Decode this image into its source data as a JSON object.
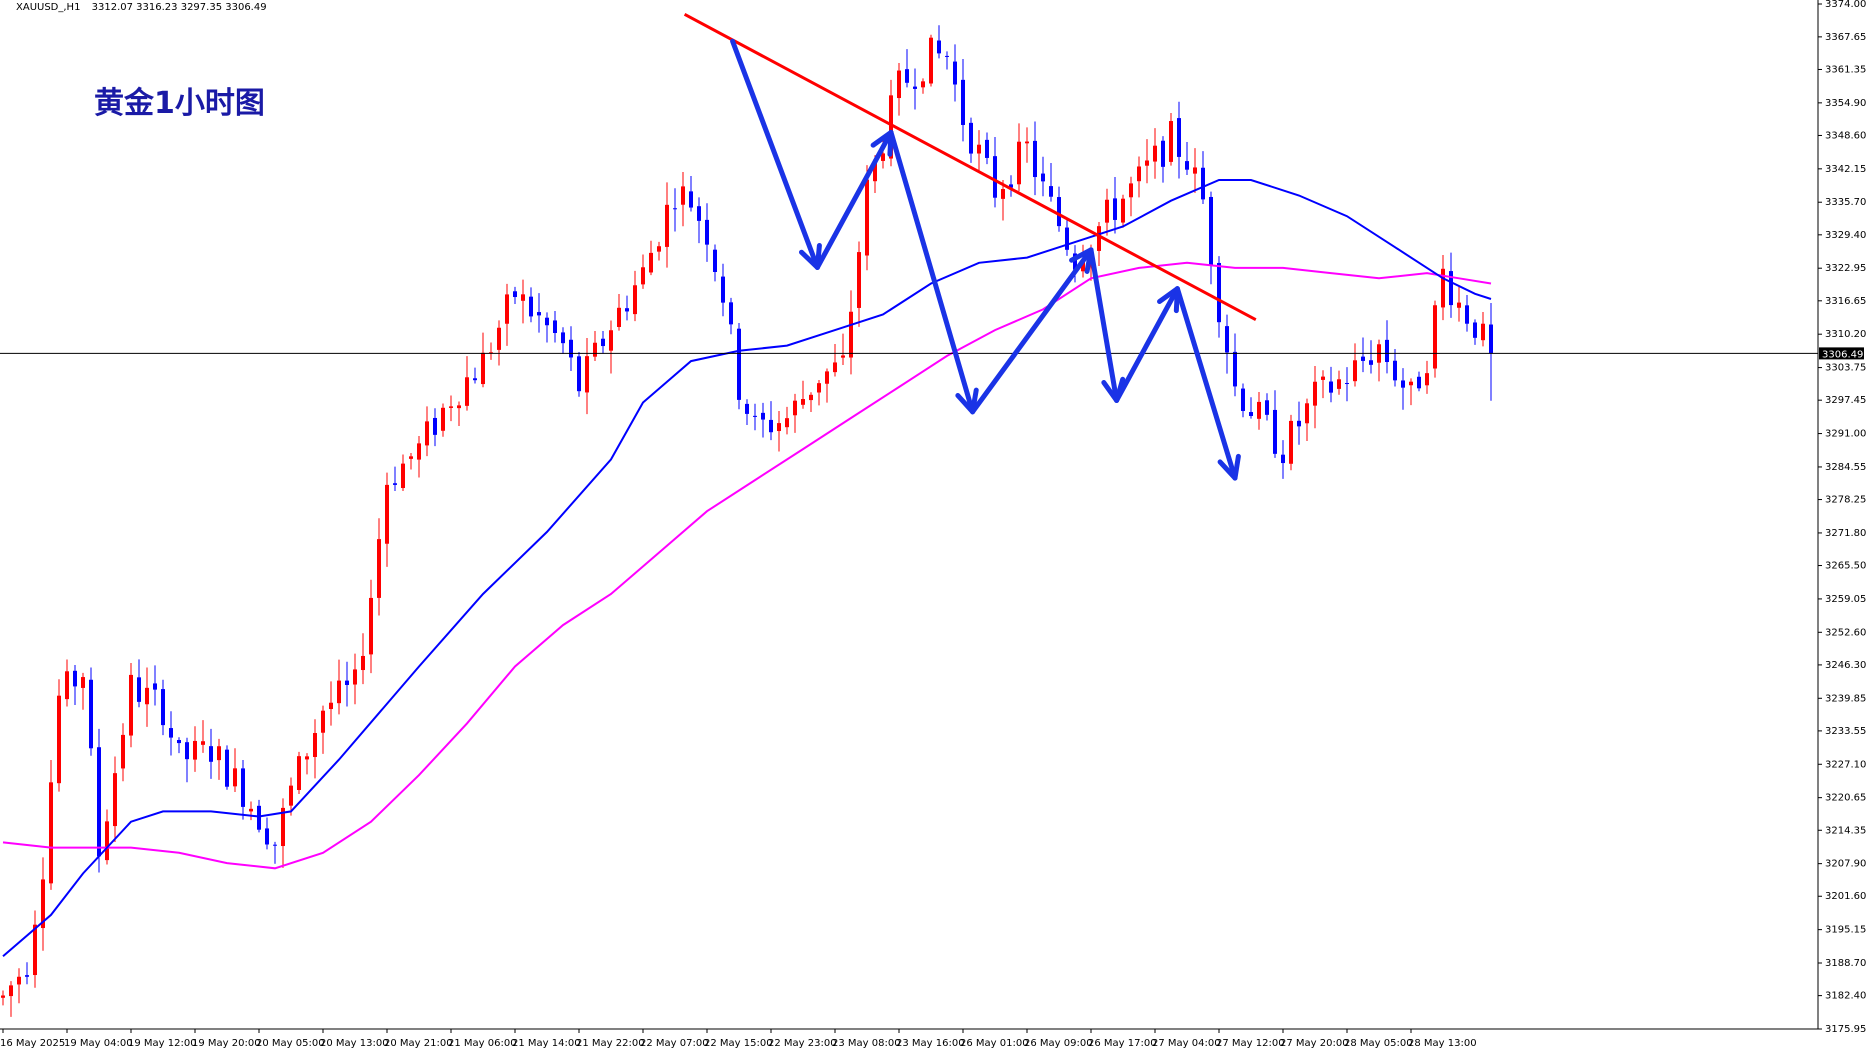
{
  "header": {
    "symbol": "XAUUSD_,H1",
    "ohlc": "3312.07 3316.23 3297.35 3306.49"
  },
  "overlay_title": "黄金1小时图",
  "current_price_label": "3306.49",
  "colors": {
    "bull": "#ff0000",
    "bear": "#0000ff",
    "ma_fast": "#0000ff",
    "ma_slow": "#ff00ff",
    "trendline": "#ff0000",
    "arrows": "#1a33e6",
    "hline": "#000000",
    "background": "#ffffff",
    "title": "#1a1aa6"
  },
  "chart_data": {
    "type": "candlestick",
    "ylim": [
      3175.95,
      3374.0
    ],
    "grid": false,
    "y_ticks": [
      "3374.00",
      "3367.65",
      "3361.35",
      "3354.90",
      "3348.60",
      "3342.15",
      "3335.70",
      "3329.40",
      "3322.95",
      "3316.65",
      "3310.20",
      "3303.75",
      "3297.45",
      "3291.00",
      "3284.55",
      "3278.25",
      "3271.80",
      "3265.50",
      "3259.05",
      "3252.60",
      "3246.30",
      "3239.85",
      "3233.55",
      "3227.10",
      "3220.65",
      "3214.35",
      "3207.90",
      "3201.60",
      "3195.15",
      "3188.70",
      "3182.40",
      "3175.95"
    ],
    "x_ticks": [
      "16 May 2025",
      "19 May 04:00",
      "19 May 12:00",
      "19 May 20:00",
      "20 May 05:00",
      "20 May 13:00",
      "20 May 21:00",
      "21 May 06:00",
      "21 May 14:00",
      "21 May 22:00",
      "22 May 07:00",
      "22 May 15:00",
      "22 May 23:00",
      "23 May 08:00",
      "23 May 16:00",
      "26 May 01:00",
      "26 May 09:00",
      "26 May 17:00",
      "27 May 04:00",
      "27 May 12:00",
      "27 May 20:00",
      "28 May 05:00",
      "28 May 13:00"
    ],
    "candles_per_tick": 8,
    "current_price": 3306.49,
    "waypoints": [
      [
        0,
        3182
      ],
      [
        3,
        3189
      ],
      [
        5,
        3208
      ],
      [
        7,
        3240
      ],
      [
        10,
        3245
      ],
      [
        12,
        3210
      ],
      [
        16,
        3242
      ],
      [
        20,
        3238
      ],
      [
        22,
        3228
      ],
      [
        26,
        3230
      ],
      [
        30,
        3222
      ],
      [
        34,
        3212
      ],
      [
        36,
        3222
      ],
      [
        40,
        3238
      ],
      [
        44,
        3242
      ],
      [
        46,
        3260
      ],
      [
        48,
        3282
      ],
      [
        52,
        3288
      ],
      [
        56,
        3298
      ],
      [
        60,
        3305
      ],
      [
        64,
        3318
      ],
      [
        70,
        3308
      ],
      [
        72,
        3300
      ],
      [
        76,
        3312
      ],
      [
        80,
        3322
      ],
      [
        84,
        3338
      ],
      [
        86,
        3336
      ],
      [
        88,
        3330
      ],
      [
        90,
        3318
      ],
      [
        92,
        3300
      ],
      [
        94,
        3292
      ],
      [
        98,
        3294
      ],
      [
        102,
        3302
      ],
      [
        105,
        3304
      ],
      [
        108,
        3338
      ],
      [
        112,
        3358
      ],
      [
        116,
        3364
      ],
      [
        118,
        3364
      ],
      [
        120,
        3352
      ],
      [
        124,
        3338
      ],
      [
        128,
        3346
      ],
      [
        130,
        3338
      ],
      [
        134,
        3325
      ],
      [
        138,
        3333
      ],
      [
        142,
        3340
      ],
      [
        146,
        3348
      ],
      [
        148,
        3344
      ],
      [
        150,
        3336
      ],
      [
        152,
        3316
      ],
      [
        154,
        3300
      ],
      [
        158,
        3292
      ],
      [
        160,
        3288
      ],
      [
        164,
        3298
      ],
      [
        168,
        3302
      ],
      [
        172,
        3308
      ],
      [
        176,
        3298
      ],
      [
        178,
        3306
      ],
      [
        180,
        3322
      ],
      [
        182,
        3316
      ],
      [
        184,
        3312
      ],
      [
        186,
        3306
      ]
    ],
    "ma_fast": {
      "name": "",
      "points": [
        [
          0,
          3190
        ],
        [
          6,
          3198
        ],
        [
          10,
          3206
        ],
        [
          16,
          3216
        ],
        [
          20,
          3218
        ],
        [
          26,
          3218
        ],
        [
          32,
          3217
        ],
        [
          36,
          3218
        ],
        [
          42,
          3228
        ],
        [
          52,
          3246
        ],
        [
          60,
          3260
        ],
        [
          68,
          3272
        ],
        [
          76,
          3286
        ],
        [
          80,
          3297
        ],
        [
          86,
          3305
        ],
        [
          92,
          3307
        ],
        [
          98,
          3308
        ],
        [
          104,
          3311
        ],
        [
          110,
          3314
        ],
        [
          116,
          3320
        ],
        [
          122,
          3324
        ],
        [
          128,
          3325
        ],
        [
          134,
          3328
        ],
        [
          140,
          3331
        ],
        [
          146,
          3336
        ],
        [
          152,
          3340
        ],
        [
          156,
          3340
        ],
        [
          162,
          3337
        ],
        [
          168,
          3333
        ],
        [
          174,
          3327
        ],
        [
          180,
          3321
        ],
        [
          184,
          3318
        ],
        [
          186,
          3317
        ]
      ]
    },
    "ma_slow": {
      "name": "",
      "points": [
        [
          0,
          3212
        ],
        [
          6,
          3211
        ],
        [
          12,
          3211
        ],
        [
          16,
          3211
        ],
        [
          22,
          3210
        ],
        [
          28,
          3208
        ],
        [
          34,
          3207
        ],
        [
          40,
          3210
        ],
        [
          46,
          3216
        ],
        [
          52,
          3225
        ],
        [
          58,
          3235
        ],
        [
          64,
          3246
        ],
        [
          70,
          3254
        ],
        [
          76,
          3260
        ],
        [
          82,
          3268
        ],
        [
          88,
          3276
        ],
        [
          94,
          3282
        ],
        [
          100,
          3288
        ],
        [
          106,
          3294
        ],
        [
          112,
          3300
        ],
        [
          118,
          3306
        ],
        [
          124,
          3311
        ],
        [
          130,
          3315
        ],
        [
          136,
          3321
        ],
        [
          142,
          3323
        ],
        [
          148,
          3324
        ],
        [
          154,
          3323
        ],
        [
          160,
          3323
        ],
        [
          166,
          3322
        ],
        [
          172,
          3321
        ],
        [
          178,
          3322
        ],
        [
          182,
          3321
        ],
        [
          186,
          3320
        ]
      ]
    },
    "trendline": [
      [
        85.2,
        3372.0
      ],
      [
        156.6,
        3313.0
      ]
    ],
    "arrows": [
      [
        [
          91.2,
          3366.8
        ],
        [
          101.8,
          3323.1
        ],
        [
          111.0,
          3349.2
        ],
        [
          121.2,
          3295.2
        ],
        [
          136.0,
          3326.5
        ],
        [
          139.2,
          3297.4
        ],
        [
          146.8,
          3319.0
        ],
        [
          154.0,
          3282.4
        ]
      ]
    ]
  }
}
